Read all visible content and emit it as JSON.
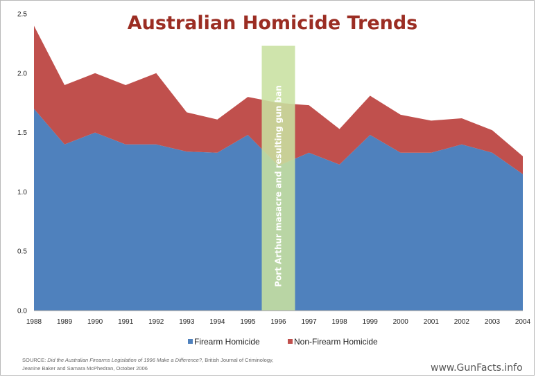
{
  "chart_data": {
    "type": "area",
    "title": "Australian Homicide Trends",
    "x": [
      "1988",
      "1989",
      "1990",
      "1991",
      "1992",
      "1993",
      "1994",
      "1995",
      "1996",
      "1997",
      "1998",
      "1999",
      "2000",
      "2001",
      "2002",
      "2003",
      "2004"
    ],
    "series": [
      {
        "name": "Firearm Homicide",
        "color": "#4f81bd",
        "values": [
          1.7,
          1.4,
          1.5,
          1.4,
          1.4,
          1.34,
          1.33,
          1.48,
          1.22,
          1.33,
          1.23,
          1.48,
          1.33,
          1.33,
          1.4,
          1.33,
          1.15
        ]
      },
      {
        "name": "Non-Firearm Homicide",
        "color": "#c0504d",
        "values": [
          0.7,
          0.5,
          0.5,
          0.5,
          0.6,
          0.33,
          0.28,
          0.32,
          0.53,
          0.4,
          0.3,
          0.33,
          0.32,
          0.27,
          0.22,
          0.19,
          0.15
        ]
      }
    ],
    "stacked": true,
    "ylim": [
      0,
      2.5
    ],
    "yticks": [
      "0.0",
      "0.5",
      "1.0",
      "1.5",
      "2.0",
      "2.5"
    ],
    "grid": false,
    "legend_position": "bottom",
    "annotation": {
      "text": "Port  Arthur masacre and resulting gun ban",
      "year": "1996",
      "color": "#c8e0a0"
    }
  },
  "source": {
    "prefix": "SOURCE: ",
    "title": "Did the Australian Firearms Legislation of 1996 Make a Difference?",
    "rest": ", British Journal of Criminology,",
    "line2": "Jeanine Baker and Samara McPhedran, October 2006"
  },
  "watermark": "www.GunFacts.info"
}
